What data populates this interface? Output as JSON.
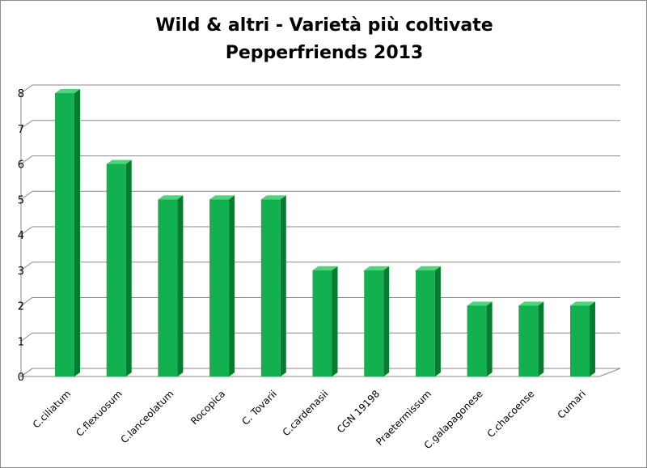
{
  "chart_data": {
    "type": "bar",
    "title": "Wild & altri - Varietà più coltivate",
    "subtitle": "Pepperfriends 2013",
    "categories": [
      "C.ciliatum",
      "C.flexuosum",
      "C.lanceolatum",
      "Rocopica",
      "C. Tovarii",
      "C.cardenasii",
      "CGN 19198",
      "Praetermissum",
      "C.galapagonese",
      "C.chacoense",
      "Cumari"
    ],
    "values": [
      8,
      6,
      5,
      5,
      5,
      3,
      3,
      3,
      2,
      2,
      2
    ],
    "yticks": [
      "0",
      "1",
      "2",
      "3",
      "4",
      "5",
      "6",
      "7",
      "8"
    ],
    "ylim": [
      0,
      8
    ],
    "grid": true,
    "legend": "none",
    "colors": {
      "bar_front": "#13b04f",
      "bar_side": "#0a7a30",
      "bar_top": "#4fd47d",
      "grid": "#8a8a8a",
      "floor": "#d0d0d0"
    }
  }
}
